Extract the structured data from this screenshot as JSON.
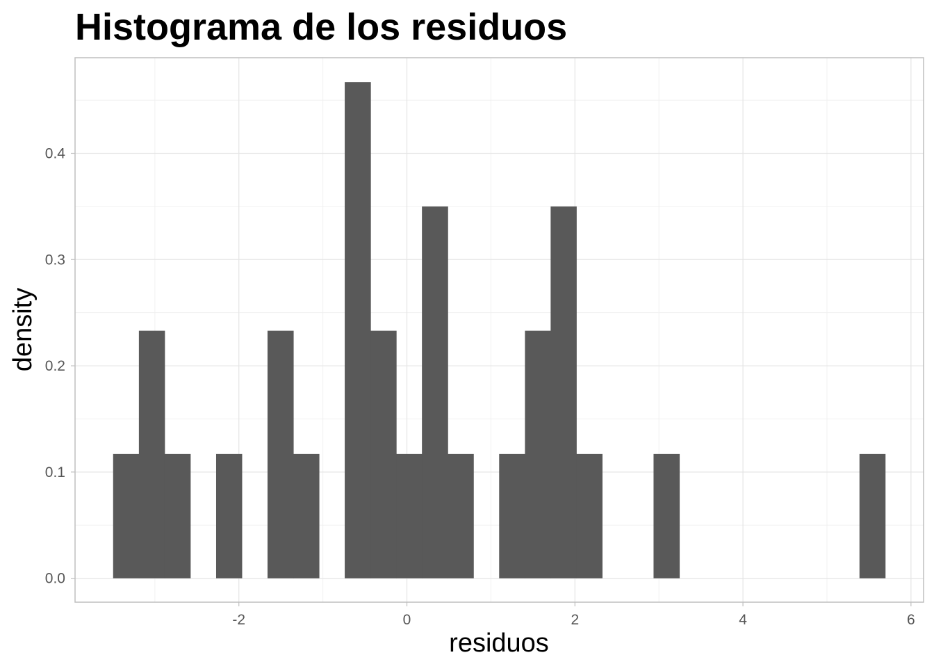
{
  "chart_data": {
    "type": "bar",
    "subtype": "histogram",
    "title": "Histograma de los residuos",
    "xlabel": "residuos",
    "ylabel": "density",
    "xlim": [
      -3.95,
      6.15
    ],
    "ylim": [
      -0.0225,
      0.49
    ],
    "x_ticks": [
      -2,
      0,
      2,
      4,
      6
    ],
    "x_tick_labels": [
      "-2",
      "0",
      "2",
      "4",
      "6"
    ],
    "x_minor_ticks": [
      -3,
      -1,
      1,
      3,
      5
    ],
    "y_ticks": [
      0.0,
      0.1,
      0.2,
      0.3,
      0.4
    ],
    "y_tick_labels": [
      "0.0",
      "0.1",
      "0.2",
      "0.3",
      "0.4"
    ],
    "y_minor_ticks": [
      0.05,
      0.15,
      0.25,
      0.35,
      0.45
    ],
    "grid": true,
    "bar_color": "#595959",
    "bins": [
      {
        "x0": -3.497,
        "x1": -3.19,
        "density": 0.117
      },
      {
        "x0": -3.19,
        "x1": -2.884,
        "density": 0.233
      },
      {
        "x0": -2.884,
        "x1": -2.578,
        "density": 0.117
      },
      {
        "x0": -2.271,
        "x1": -1.965,
        "density": 0.117
      },
      {
        "x0": -1.659,
        "x1": -1.352,
        "density": 0.233
      },
      {
        "x0": -1.352,
        "x1": -1.046,
        "density": 0.117
      },
      {
        "x0": -0.74,
        "x1": -0.433,
        "density": 0.467
      },
      {
        "x0": -0.433,
        "x1": -0.127,
        "density": 0.233
      },
      {
        "x0": -0.127,
        "x1": 0.179,
        "density": 0.117
      },
      {
        "x0": 0.179,
        "x1": 0.486,
        "density": 0.35
      },
      {
        "x0": 0.486,
        "x1": 0.792,
        "density": 0.117
      },
      {
        "x0": 1.098,
        "x1": 1.405,
        "density": 0.117
      },
      {
        "x0": 1.405,
        "x1": 1.711,
        "density": 0.233
      },
      {
        "x0": 1.711,
        "x1": 2.017,
        "density": 0.35
      },
      {
        "x0": 2.017,
        "x1": 2.324,
        "density": 0.117
      },
      {
        "x0": 2.936,
        "x1": 3.243,
        "density": 0.117
      },
      {
        "x0": 5.387,
        "x1": 5.693,
        "density": 0.117
      }
    ]
  },
  "colors": {
    "panel_border": "#bfbfbf",
    "grid_major": "#e5e5e5",
    "grid_minor": "#f0f0f0",
    "tick_text": "#555555",
    "title_text": "#000000"
  }
}
